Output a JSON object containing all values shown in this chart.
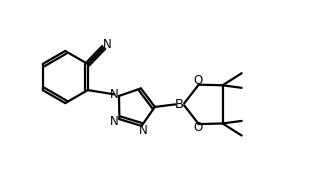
{
  "bg_color": "#ffffff",
  "line_color": "#000000",
  "line_width": 1.6,
  "font_size": 8.5,
  "xlim": [
    0,
    10
  ],
  "ylim": [
    0,
    5.3
  ]
}
